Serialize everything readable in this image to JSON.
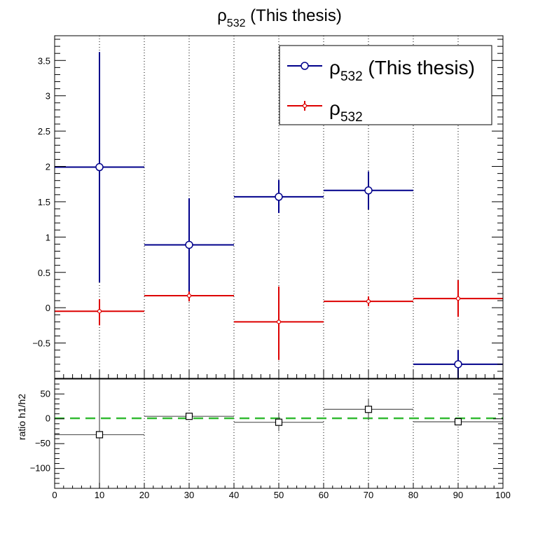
{
  "title": {
    "symbol": "ρ",
    "subscript": "532",
    "suffix": " (This thesis)"
  },
  "legend": {
    "placement": "top-right",
    "entries": [
      {
        "symbol": "ρ",
        "subscript": "532",
        "suffix": " (This thesis)",
        "color": "#00008B",
        "marker": "open-circle"
      },
      {
        "symbol": "ρ",
        "subscript": "532",
        "suffix": "",
        "color": "#DD0000",
        "marker": "small-circle"
      }
    ]
  },
  "chart_data": [
    {
      "type": "scatter",
      "subtype": "histogram-with-errors",
      "bins": [
        [
          0,
          20
        ],
        [
          20,
          40
        ],
        [
          40,
          60
        ],
        [
          60,
          80
        ],
        [
          80,
          100
        ]
      ],
      "x": [
        10,
        30,
        50,
        70,
        90
      ],
      "xlim": [
        0,
        100
      ],
      "xticks": [
        "0",
        "10",
        "20",
        "30",
        "40",
        "50",
        "60",
        "70",
        "80",
        "90",
        "100"
      ],
      "ylim": [
        -1,
        3.85
      ],
      "yticks": [
        "−0.5",
        "0",
        "0.5",
        "1",
        "1.5",
        "2",
        "2.5",
        "3",
        "3.5"
      ],
      "grid_x": true,
      "series": [
        {
          "name": "ρ532 (This thesis)",
          "color": "#00008B",
          "marker": "open-circle",
          "values": [
            1.99,
            0.89,
            1.57,
            1.66,
            -0.8
          ],
          "err_low": [
            1.63,
            0.68,
            0.23,
            0.27,
            0.2
          ],
          "err_high": [
            1.63,
            0.66,
            0.24,
            0.27,
            0.2
          ]
        },
        {
          "name": "ρ532",
          "color": "#DD0000",
          "marker": "small-circle",
          "values": [
            -0.05,
            0.17,
            -0.2,
            0.09,
            0.13
          ],
          "err_low": [
            0.2,
            0.08,
            0.54,
            0.07,
            0.26
          ],
          "err_high": [
            0.17,
            0.06,
            0.5,
            0.07,
            0.26
          ]
        }
      ]
    },
    {
      "type": "scatter",
      "subtype": "ratio",
      "ylabel": "ratio h1/h2",
      "bins": [
        [
          0,
          20
        ],
        [
          20,
          40
        ],
        [
          40,
          60
        ],
        [
          60,
          80
        ],
        [
          80,
          100
        ]
      ],
      "x": [
        10,
        30,
        50,
        70,
        90
      ],
      "xlim": [
        0,
        100
      ],
      "ylim": [
        -140,
        80
      ],
      "yticks": [
        "−100",
        "−50",
        "0",
        "50"
      ],
      "reference_line": {
        "y": 1,
        "color": "#33BB33",
        "style": "dashed"
      },
      "series": [
        {
          "name": "ratio",
          "color": "#000000",
          "marker": "open-square",
          "values": [
            -32,
            5,
            -7,
            19,
            -6
          ],
          "err_low": [
            150,
            3,
            18,
            22,
            4
          ],
          "err_high": [
            150,
            3,
            18,
            22,
            4
          ]
        }
      ]
    }
  ]
}
